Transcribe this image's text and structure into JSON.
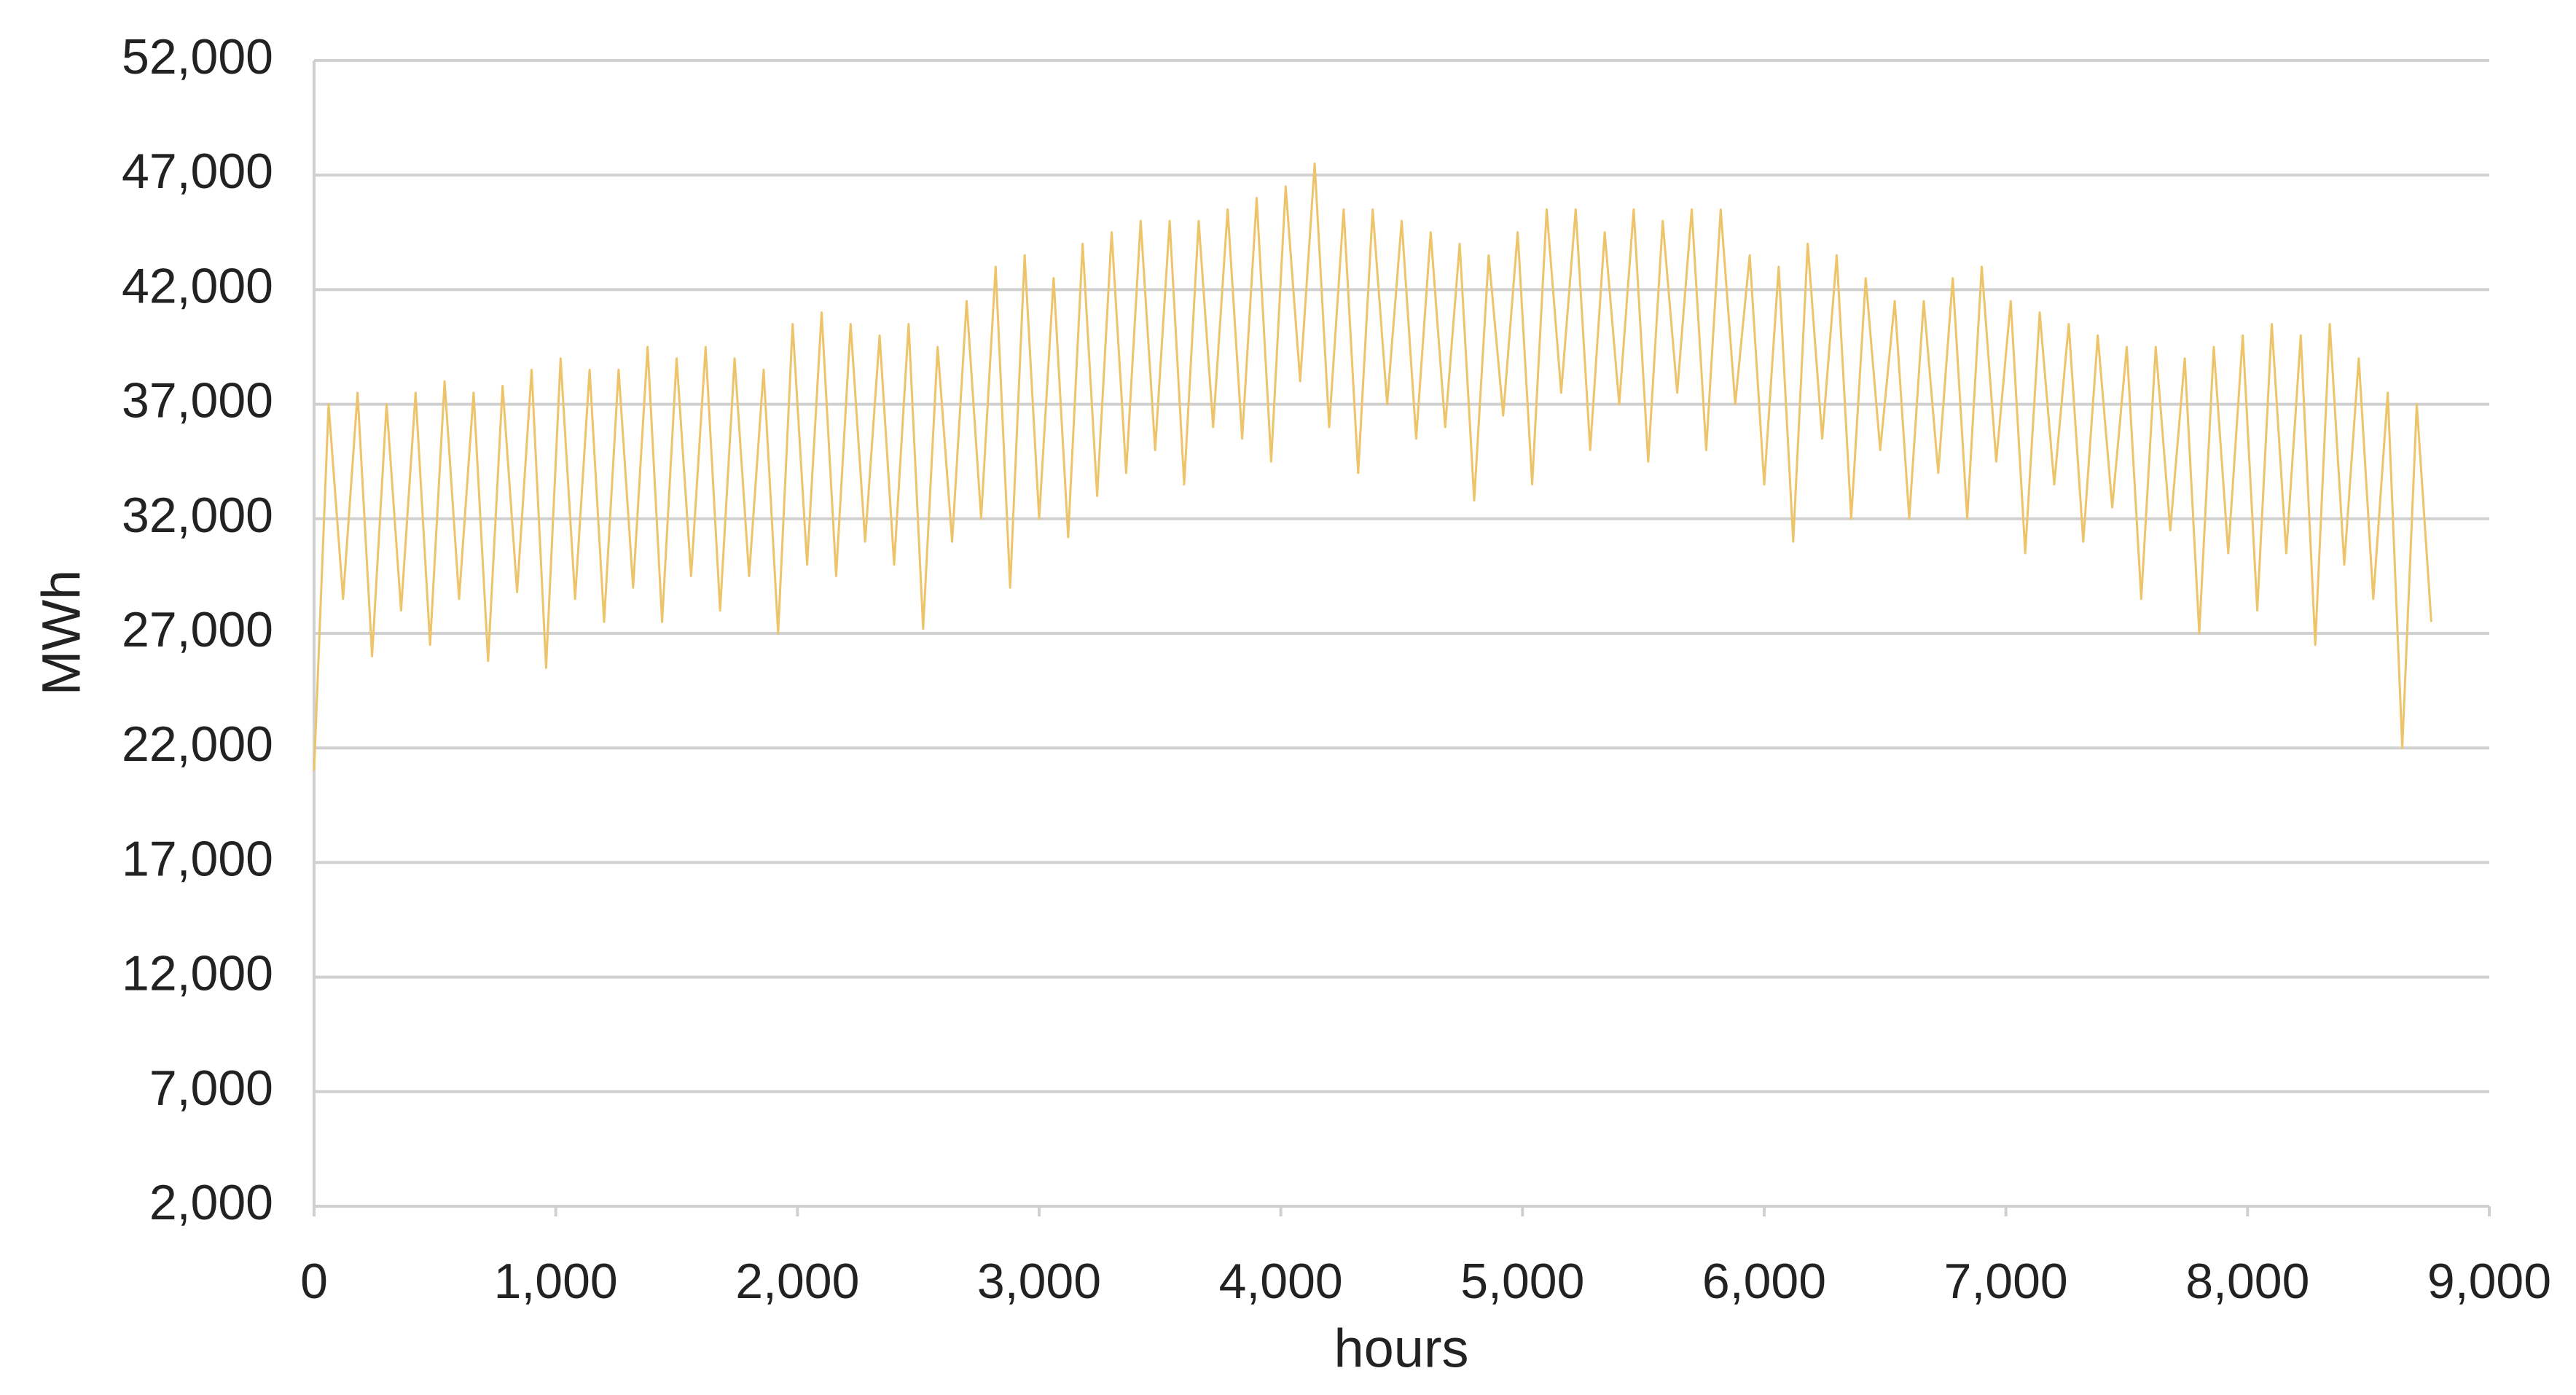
{
  "chart_data": {
    "type": "line",
    "xlabel": "hours",
    "ylabel": "MWh",
    "color": "#eec46a",
    "grid": true,
    "xlim": [
      0,
      9000
    ],
    "xticks": [
      0,
      {
        "value": 1000,
        "label": "1,000"
      },
      {
        "value": 2000,
        "label": "2,000"
      },
      {
        "value": 3000,
        "label": "3,000"
      },
      {
        "value": 4000,
        "label": "4,000"
      },
      {
        "value": 5000,
        "label": "5,000"
      },
      {
        "value": 6000,
        "label": "6,000"
      },
      {
        "value": 7000,
        "label": "7,000"
      },
      {
        "value": 8000,
        "label": "8,000"
      },
      {
        "value": 9000,
        "label": "9,000"
      }
    ],
    "ylim": [
      2000,
      52000
    ],
    "yticks": [
      {
        "value": 2000,
        "label": "2,000"
      },
      {
        "value": 7000,
        "label": "7,000"
      },
      {
        "value": 12000,
        "label": "12,000"
      },
      {
        "value": 17000,
        "label": "17,000"
      },
      {
        "value": 22000,
        "label": "22,000"
      },
      {
        "value": 27000,
        "label": "27,000"
      },
      {
        "value": 32000,
        "label": "32,000"
      },
      {
        "value": 37000,
        "label": "37,000"
      },
      {
        "value": 42000,
        "label": "42,000"
      },
      {
        "value": 47000,
        "label": "47,000"
      },
      {
        "value": 52000,
        "label": "52,000"
      }
    ],
    "x": [
      0,
      60,
      120,
      180,
      240,
      300,
      360,
      420,
      480,
      540,
      600,
      660,
      720,
      780,
      840,
      900,
      960,
      1020,
      1080,
      1140,
      1200,
      1260,
      1320,
      1380,
      1440,
      1500,
      1560,
      1620,
      1680,
      1740,
      1800,
      1860,
      1920,
      1980,
      2040,
      2100,
      2160,
      2220,
      2280,
      2340,
      2400,
      2460,
      2520,
      2580,
      2640,
      2700,
      2760,
      2820,
      2880,
      2940,
      3000,
      3060,
      3120,
      3180,
      3240,
      3300,
      3360,
      3420,
      3480,
      3540,
      3600,
      3660,
      3720,
      3780,
      3840,
      3900,
      3960,
      4020,
      4080,
      4140,
      4200,
      4260,
      4320,
      4380,
      4440,
      4500,
      4560,
      4620,
      4680,
      4740,
      4800,
      4860,
      4920,
      4980,
      5040,
      5100,
      5160,
      5220,
      5280,
      5340,
      5400,
      5460,
      5520,
      5580,
      5640,
      5700,
      5760,
      5820,
      5880,
      5940,
      6000,
      6060,
      6120,
      6180,
      6240,
      6300,
      6360,
      6420,
      6480,
      6540,
      6600,
      6660,
      6720,
      6780,
      6840,
      6900,
      6960,
      7020,
      7080,
      7140,
      7200,
      7260,
      7320,
      7380,
      7440,
      7500,
      7560,
      7620,
      7680,
      7740,
      7800,
      7860,
      7920,
      7980,
      8040,
      8100,
      8160,
      8220,
      8280,
      8340,
      8400,
      8460,
      8520,
      8580,
      8640,
      8700,
      8760
    ],
    "values": [
      21000,
      37000,
      28500,
      37500,
      26000,
      37000,
      28000,
      37500,
      26500,
      38000,
      28500,
      37500,
      25800,
      37800,
      28800,
      38500,
      25500,
      39000,
      28500,
      38500,
      27500,
      38500,
      29000,
      39500,
      27500,
      39000,
      29500,
      39500,
      28000,
      39000,
      29500,
      38500,
      27000,
      40500,
      30000,
      41000,
      29500,
      40500,
      31000,
      40000,
      30000,
      40500,
      27200,
      39500,
      31000,
      41500,
      32000,
      43000,
      29000,
      43500,
      32000,
      42500,
      31200,
      44000,
      33000,
      44500,
      34000,
      45000,
      35000,
      45000,
      33500,
      45000,
      36000,
      45500,
      35500,
      46000,
      34500,
      46500,
      38000,
      47500,
      36000,
      45500,
      34000,
      45500,
      37000,
      45000,
      35500,
      44500,
      36000,
      44000,
      32800,
      43500,
      36500,
      44500,
      33500,
      45500,
      37500,
      45500,
      35000,
      44500,
      37000,
      45500,
      34500,
      45000,
      37500,
      45500,
      35000,
      45500,
      37000,
      43500,
      33500,
      43000,
      31000,
      44000,
      35500,
      43500,
      32000,
      42500,
      35000,
      41500,
      32000,
      41500,
      34000,
      42500,
      32000,
      43000,
      34500,
      41500,
      30500,
      41000,
      33500,
      40500,
      31000,
      40000,
      32500,
      39500,
      28500,
      39500,
      31500,
      39000,
      27000,
      39500,
      30500,
      40000,
      28000,
      40500,
      30500,
      40000,
      26500,
      40500,
      30000,
      39000,
      28500,
      37500,
      22000,
      37000,
      27500
    ]
  }
}
